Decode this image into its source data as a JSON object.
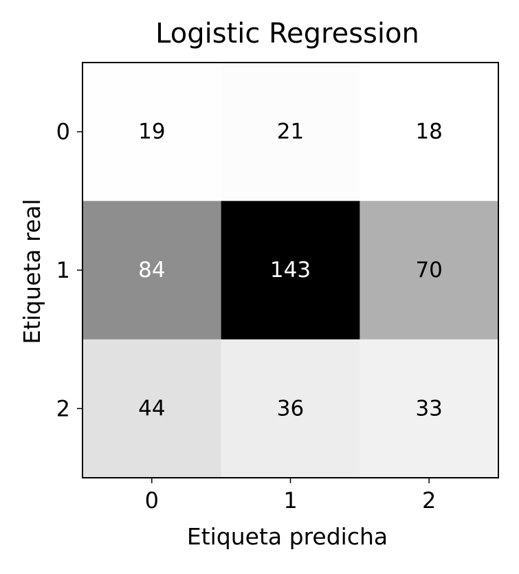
{
  "chart_data": {
    "type": "heatmap",
    "title": "Logistic Regression",
    "xlabel": "Etiqueta predicha",
    "ylabel": "Etiqueta real",
    "x_categories": [
      "0",
      "1",
      "2"
    ],
    "y_categories": [
      "0",
      "1",
      "2"
    ],
    "values": [
      [
        19,
        21,
        18
      ],
      [
        84,
        143,
        70
      ],
      [
        44,
        36,
        33
      ]
    ],
    "colormap": "Greys",
    "value_range": [
      18,
      143
    ],
    "low_color": "#ffffff",
    "high_color": "#000000",
    "text_color_light": "#ffffff",
    "text_color_dark": "#000000",
    "grid": false
  }
}
